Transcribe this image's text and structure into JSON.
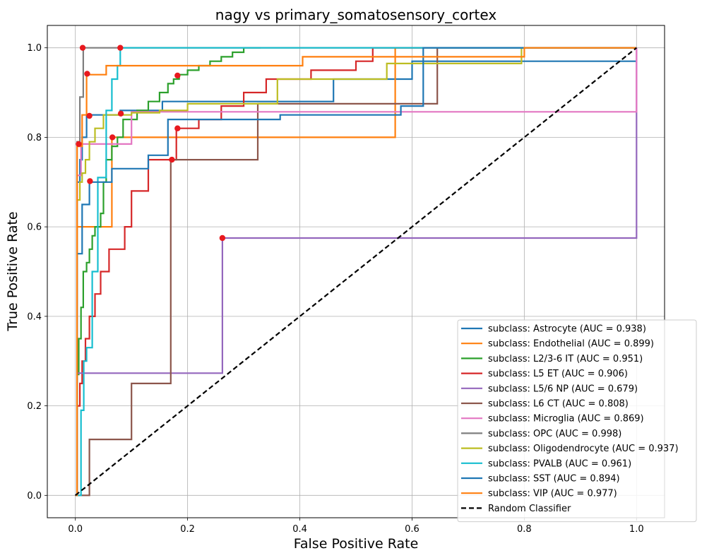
{
  "chart_data": {
    "type": "line",
    "title": "nagy vs primary_somatosensory_cortex",
    "xlabel": "False Positive Rate",
    "ylabel": "True Positive Rate",
    "xlim": [
      -0.05,
      1.05
    ],
    "ylim": [
      -0.05,
      1.05
    ],
    "xticks": [
      "0.0",
      "0.2",
      "0.4",
      "0.6",
      "0.8",
      "1.0"
    ],
    "yticks": [
      "0.0",
      "0.2",
      "0.4",
      "0.6",
      "0.8",
      "1.0"
    ],
    "grid": true,
    "legend_position": "lower-right",
    "series": [
      {
        "name": "subclass: Astrocyte (AUC = 0.938)",
        "color": "#1f77b4",
        "x": [
          0,
          0.003,
          0.003,
          0.008,
          0.008,
          0.012,
          0.012,
          0.02,
          0.02,
          0.025,
          0.025,
          0.04,
          0.04,
          0.08,
          0.08,
          0.123,
          0.123,
          0.155,
          0.155,
          0.175,
          0.175,
          0.22,
          0.22,
          0.46,
          0.46,
          0.6,
          0.6,
          0.62,
          0.62,
          1.0
        ],
        "y": [
          0,
          0,
          0.7,
          0.7,
          0.75,
          0.75,
          0.8,
          0.8,
          0.848,
          0.848,
          0.85,
          0.85,
          0.85,
          0.85,
          0.86,
          0.86,
          0.86,
          0.86,
          0.88,
          0.88,
          0.88,
          0.88,
          0.88,
          0.88,
          0.93,
          0.93,
          0.97,
          0.97,
          0.97,
          0.97
        ],
        "marker": [
          0.025,
          0.848
        ]
      },
      {
        "name": "subclass: Endothelial (AUC = 0.899)",
        "color": "#ff7f0e",
        "x": [
          0,
          0.003,
          0.003,
          0.065,
          0.065,
          0.08,
          0.08,
          0.57,
          0.57,
          0.8,
          0.8,
          1.0
        ],
        "y": [
          0,
          0,
          0.6,
          0.6,
          0.8,
          0.8,
          0.8,
          0.8,
          1.0,
          1.0,
          1.0,
          1.0
        ],
        "marker": [
          0.066,
          0.8
        ]
      },
      {
        "name": "subclass: L2/3-6 IT (AUC = 0.951)",
        "color": "#2ca02c",
        "x": [
          0,
          0.003,
          0.003,
          0.006,
          0.006,
          0.01,
          0.01,
          0.014,
          0.014,
          0.02,
          0.02,
          0.025,
          0.025,
          0.03,
          0.03,
          0.035,
          0.035,
          0.045,
          0.045,
          0.05,
          0.05,
          0.055,
          0.055,
          0.065,
          0.065,
          0.075,
          0.075,
          0.085,
          0.085,
          0.11,
          0.11,
          0.13,
          0.13,
          0.15,
          0.15,
          0.165,
          0.165,
          0.175,
          0.175,
          0.185,
          0.185,
          0.2,
          0.2,
          0.22,
          0.22,
          0.24,
          0.24,
          0.26,
          0.26,
          0.28,
          0.28,
          0.3,
          0.3,
          0.33,
          0.33
        ],
        "y": [
          0,
          0,
          0.27,
          0.27,
          0.35,
          0.35,
          0.42,
          0.42,
          0.5,
          0.5,
          0.52,
          0.52,
          0.55,
          0.55,
          0.58,
          0.58,
          0.6,
          0.6,
          0.63,
          0.63,
          0.7,
          0.7,
          0.75,
          0.75,
          0.78,
          0.78,
          0.8,
          0.8,
          0.84,
          0.84,
          0.86,
          0.86,
          0.88,
          0.88,
          0.9,
          0.9,
          0.92,
          0.92,
          0.93,
          0.93,
          0.94,
          0.94,
          0.95,
          0.95,
          0.96,
          0.96,
          0.97,
          0.97,
          0.98,
          0.98,
          0.99,
          0.99,
          1.0,
          1.0,
          1.0
        ],
        "marker": [
          0.182,
          0.938
        ]
      },
      {
        "name": "subclass: L5 ET (AUC = 0.906)",
        "color": "#d62728",
        "x": [
          0,
          0.003,
          0.003,
          0.008,
          0.008,
          0.012,
          0.012,
          0.018,
          0.018,
          0.025,
          0.025,
          0.035,
          0.035,
          0.045,
          0.045,
          0.06,
          0.06,
          0.088,
          0.088,
          0.1,
          0.1,
          0.13,
          0.13,
          0.18,
          0.18,
          0.22,
          0.22,
          0.26,
          0.26,
          0.3,
          0.3,
          0.34,
          0.34,
          0.42,
          0.42,
          0.5,
          0.5,
          0.53,
          0.53,
          0.62
        ],
        "y": [
          0,
          0,
          0.2,
          0.2,
          0.25,
          0.25,
          0.3,
          0.3,
          0.35,
          0.35,
          0.4,
          0.4,
          0.45,
          0.45,
          0.5,
          0.5,
          0.55,
          0.55,
          0.6,
          0.6,
          0.68,
          0.68,
          0.75,
          0.75,
          0.82,
          0.82,
          0.84,
          0.84,
          0.87,
          0.87,
          0.9,
          0.9,
          0.93,
          0.93,
          0.95,
          0.95,
          0.97,
          0.97,
          1.0,
          1.0
        ],
        "marker": [
          0.182,
          0.82
        ]
      },
      {
        "name": "subclass: L5/6 NP (AUC = 0.679)",
        "color": "#9467bd",
        "x": [
          0,
          0.003,
          0.003,
          0.262,
          0.262,
          1.0,
          1.0
        ],
        "y": [
          0,
          0,
          0.273,
          0.273,
          0.575,
          0.575,
          1.0
        ],
        "marker": [
          0.262,
          0.575
        ]
      },
      {
        "name": "subclass: L6 CT (AUC = 0.808)",
        "color": "#8c564b",
        "x": [
          0,
          0.025,
          0.025,
          0.1,
          0.1,
          0.17,
          0.17,
          0.325,
          0.325,
          0.645,
          0.645,
          1.0
        ],
        "y": [
          0,
          0,
          0.125,
          0.125,
          0.25,
          0.25,
          0.75,
          0.75,
          0.875,
          0.875,
          1.0,
          1.0
        ],
        "marker": [
          0.172,
          0.75
        ]
      },
      {
        "name": "subclass: Microglia (AUC = 0.869)",
        "color": "#e377c2",
        "x": [
          0,
          0.003,
          0.003,
          0.01,
          0.01,
          0.1,
          0.1,
          1.0,
          1.0
        ],
        "y": [
          0,
          0,
          0.715,
          0.715,
          0.785,
          0.785,
          0.857,
          0.857,
          1.0
        ],
        "marker": [
          0.006,
          0.785
        ]
      },
      {
        "name": "subclass: OPC (AUC = 0.998)",
        "color": "#7f7f7f",
        "x": [
          0,
          0.003,
          0.003,
          0.008,
          0.008,
          0.014,
          0.014,
          1.0
        ],
        "y": [
          0,
          0,
          0.79,
          0.79,
          0.89,
          0.89,
          1.0,
          1.0
        ],
        "marker": [
          0.013,
          1.0
        ]
      },
      {
        "name": "subclass: Oligodendrocyte (AUC = 0.937)",
        "color": "#bcbd22",
        "x": [
          0,
          0.003,
          0.003,
          0.008,
          0.008,
          0.012,
          0.012,
          0.018,
          0.018,
          0.025,
          0.025,
          0.035,
          0.035,
          0.05,
          0.05,
          0.1,
          0.1,
          0.15,
          0.15,
          0.2,
          0.2,
          0.36,
          0.36,
          0.555,
          0.555,
          0.795,
          0.795,
          1.0
        ],
        "y": [
          0,
          0,
          0.66,
          0.66,
          0.7,
          0.7,
          0.72,
          0.72,
          0.75,
          0.75,
          0.79,
          0.79,
          0.82,
          0.82,
          0.85,
          0.85,
          0.855,
          0.855,
          0.86,
          0.86,
          0.875,
          0.875,
          0.93,
          0.93,
          0.965,
          0.965,
          1.0,
          1.0
        ],
        "marker": [
          0.081,
          0.853
        ]
      },
      {
        "name": "subclass: PVALB (AUC = 0.961)",
        "color": "#17becf",
        "x": [
          0,
          0.01,
          0.01,
          0.015,
          0.015,
          0.02,
          0.02,
          0.03,
          0.03,
          0.04,
          0.04,
          0.055,
          0.055,
          0.065,
          0.065,
          0.075,
          0.075,
          0.08,
          0.08,
          0.8
        ],
        "y": [
          0,
          0,
          0.19,
          0.19,
          0.3,
          0.3,
          0.33,
          0.33,
          0.5,
          0.5,
          0.71,
          0.71,
          0.86,
          0.86,
          0.93,
          0.93,
          0.96,
          0.96,
          1.0,
          1.0
        ],
        "marker": [
          0.08,
          1.0
        ]
      },
      {
        "name": "subclass: SST (AUC = 0.894)",
        "color": "#1f77b4",
        "x": [
          0,
          0.003,
          0.003,
          0.012,
          0.012,
          0.025,
          0.025,
          0.065,
          0.065,
          0.13,
          0.13,
          0.165,
          0.165,
          0.365,
          0.365,
          0.58,
          0.58,
          0.62,
          0.62,
          1.0
        ],
        "y": [
          0,
          0,
          0.54,
          0.54,
          0.65,
          0.65,
          0.7,
          0.7,
          0.73,
          0.73,
          0.76,
          0.76,
          0.84,
          0.84,
          0.85,
          0.85,
          0.87,
          0.87,
          1.0,
          1.0
        ],
        "marker": [
          0.026,
          0.702
        ]
      },
      {
        "name": "subclass: VIP (AUC = 0.977)",
        "color": "#ff7f0e",
        "x": [
          0,
          0.003,
          0.003,
          0.012,
          0.012,
          0.02,
          0.02,
          0.055,
          0.055,
          0.405,
          0.405,
          0.8,
          0.8,
          1.0
        ],
        "y": [
          0,
          0,
          0.78,
          0.78,
          0.85,
          0.85,
          0.94,
          0.94,
          0.96,
          0.96,
          0.98,
          0.98,
          1.0,
          1.0
        ],
        "marker": [
          0.021,
          0.942
        ]
      },
      {
        "name": "Random Classifier",
        "color": "#000000",
        "dashed": true,
        "x": [
          0,
          1
        ],
        "y": [
          0,
          1
        ]
      }
    ],
    "marker_color": "#e8191e"
  }
}
